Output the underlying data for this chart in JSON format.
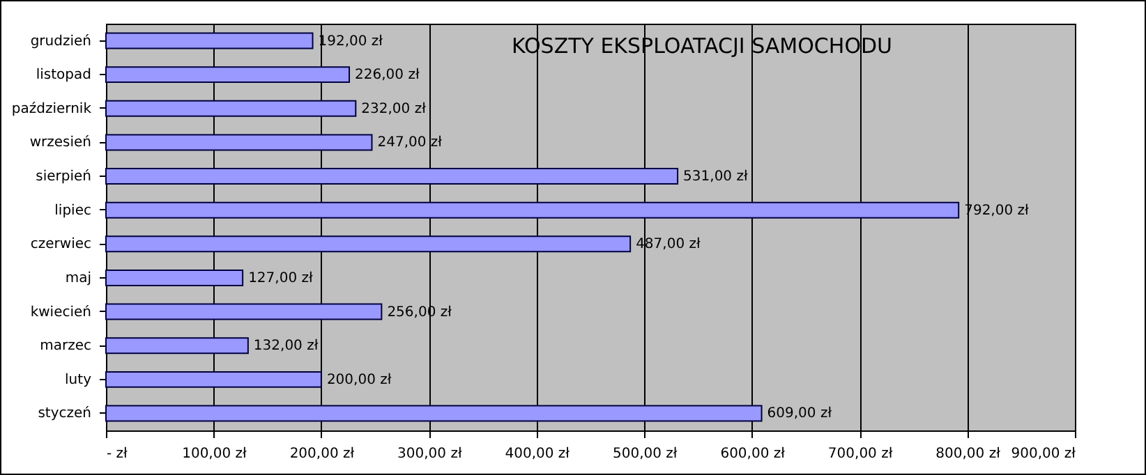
{
  "chart_data": {
    "type": "bar",
    "orientation": "horizontal",
    "title": "KOSZTY EKSPLOATACJI SAMOCHODU",
    "categories": [
      "grudzień",
      "listopad",
      "październik",
      "wrzesień",
      "sierpień",
      "lipiec",
      "czerwiec",
      "maj",
      "kwiecień",
      "marzec",
      "luty",
      "styczeń"
    ],
    "values": [
      192,
      226,
      232,
      247,
      531,
      792,
      487,
      127,
      256,
      132,
      200,
      609
    ],
    "value_labels": [
      "192,00 zł",
      "226,00 zł",
      "232,00 zł",
      "247,00 zł",
      "531,00 zł",
      "792,00 zł",
      "487,00 zł",
      "127,00 zł",
      "256,00 zł",
      "132,00 zł",
      "200,00 zł",
      "609,00 zł"
    ],
    "color": "#9999ff",
    "xlim": [
      0,
      900
    ],
    "xticks": [
      {
        "value": 0,
        "label": "-   zł"
      },
      {
        "value": 100,
        "label": "100,00 zł"
      },
      {
        "value": 200,
        "label": "200,00 zł"
      },
      {
        "value": 300,
        "label": "300,00 zł"
      },
      {
        "value": 400,
        "label": "400,00 zł"
      },
      {
        "value": 500,
        "label": "500,00 zł"
      },
      {
        "value": 600,
        "label": "600,00 zł"
      },
      {
        "value": 700,
        "label": "700,00 zł"
      },
      {
        "value": 800,
        "label": "800,00 zł"
      },
      {
        "value": 900,
        "label": "900,00 zł"
      }
    ],
    "grid": "x"
  }
}
